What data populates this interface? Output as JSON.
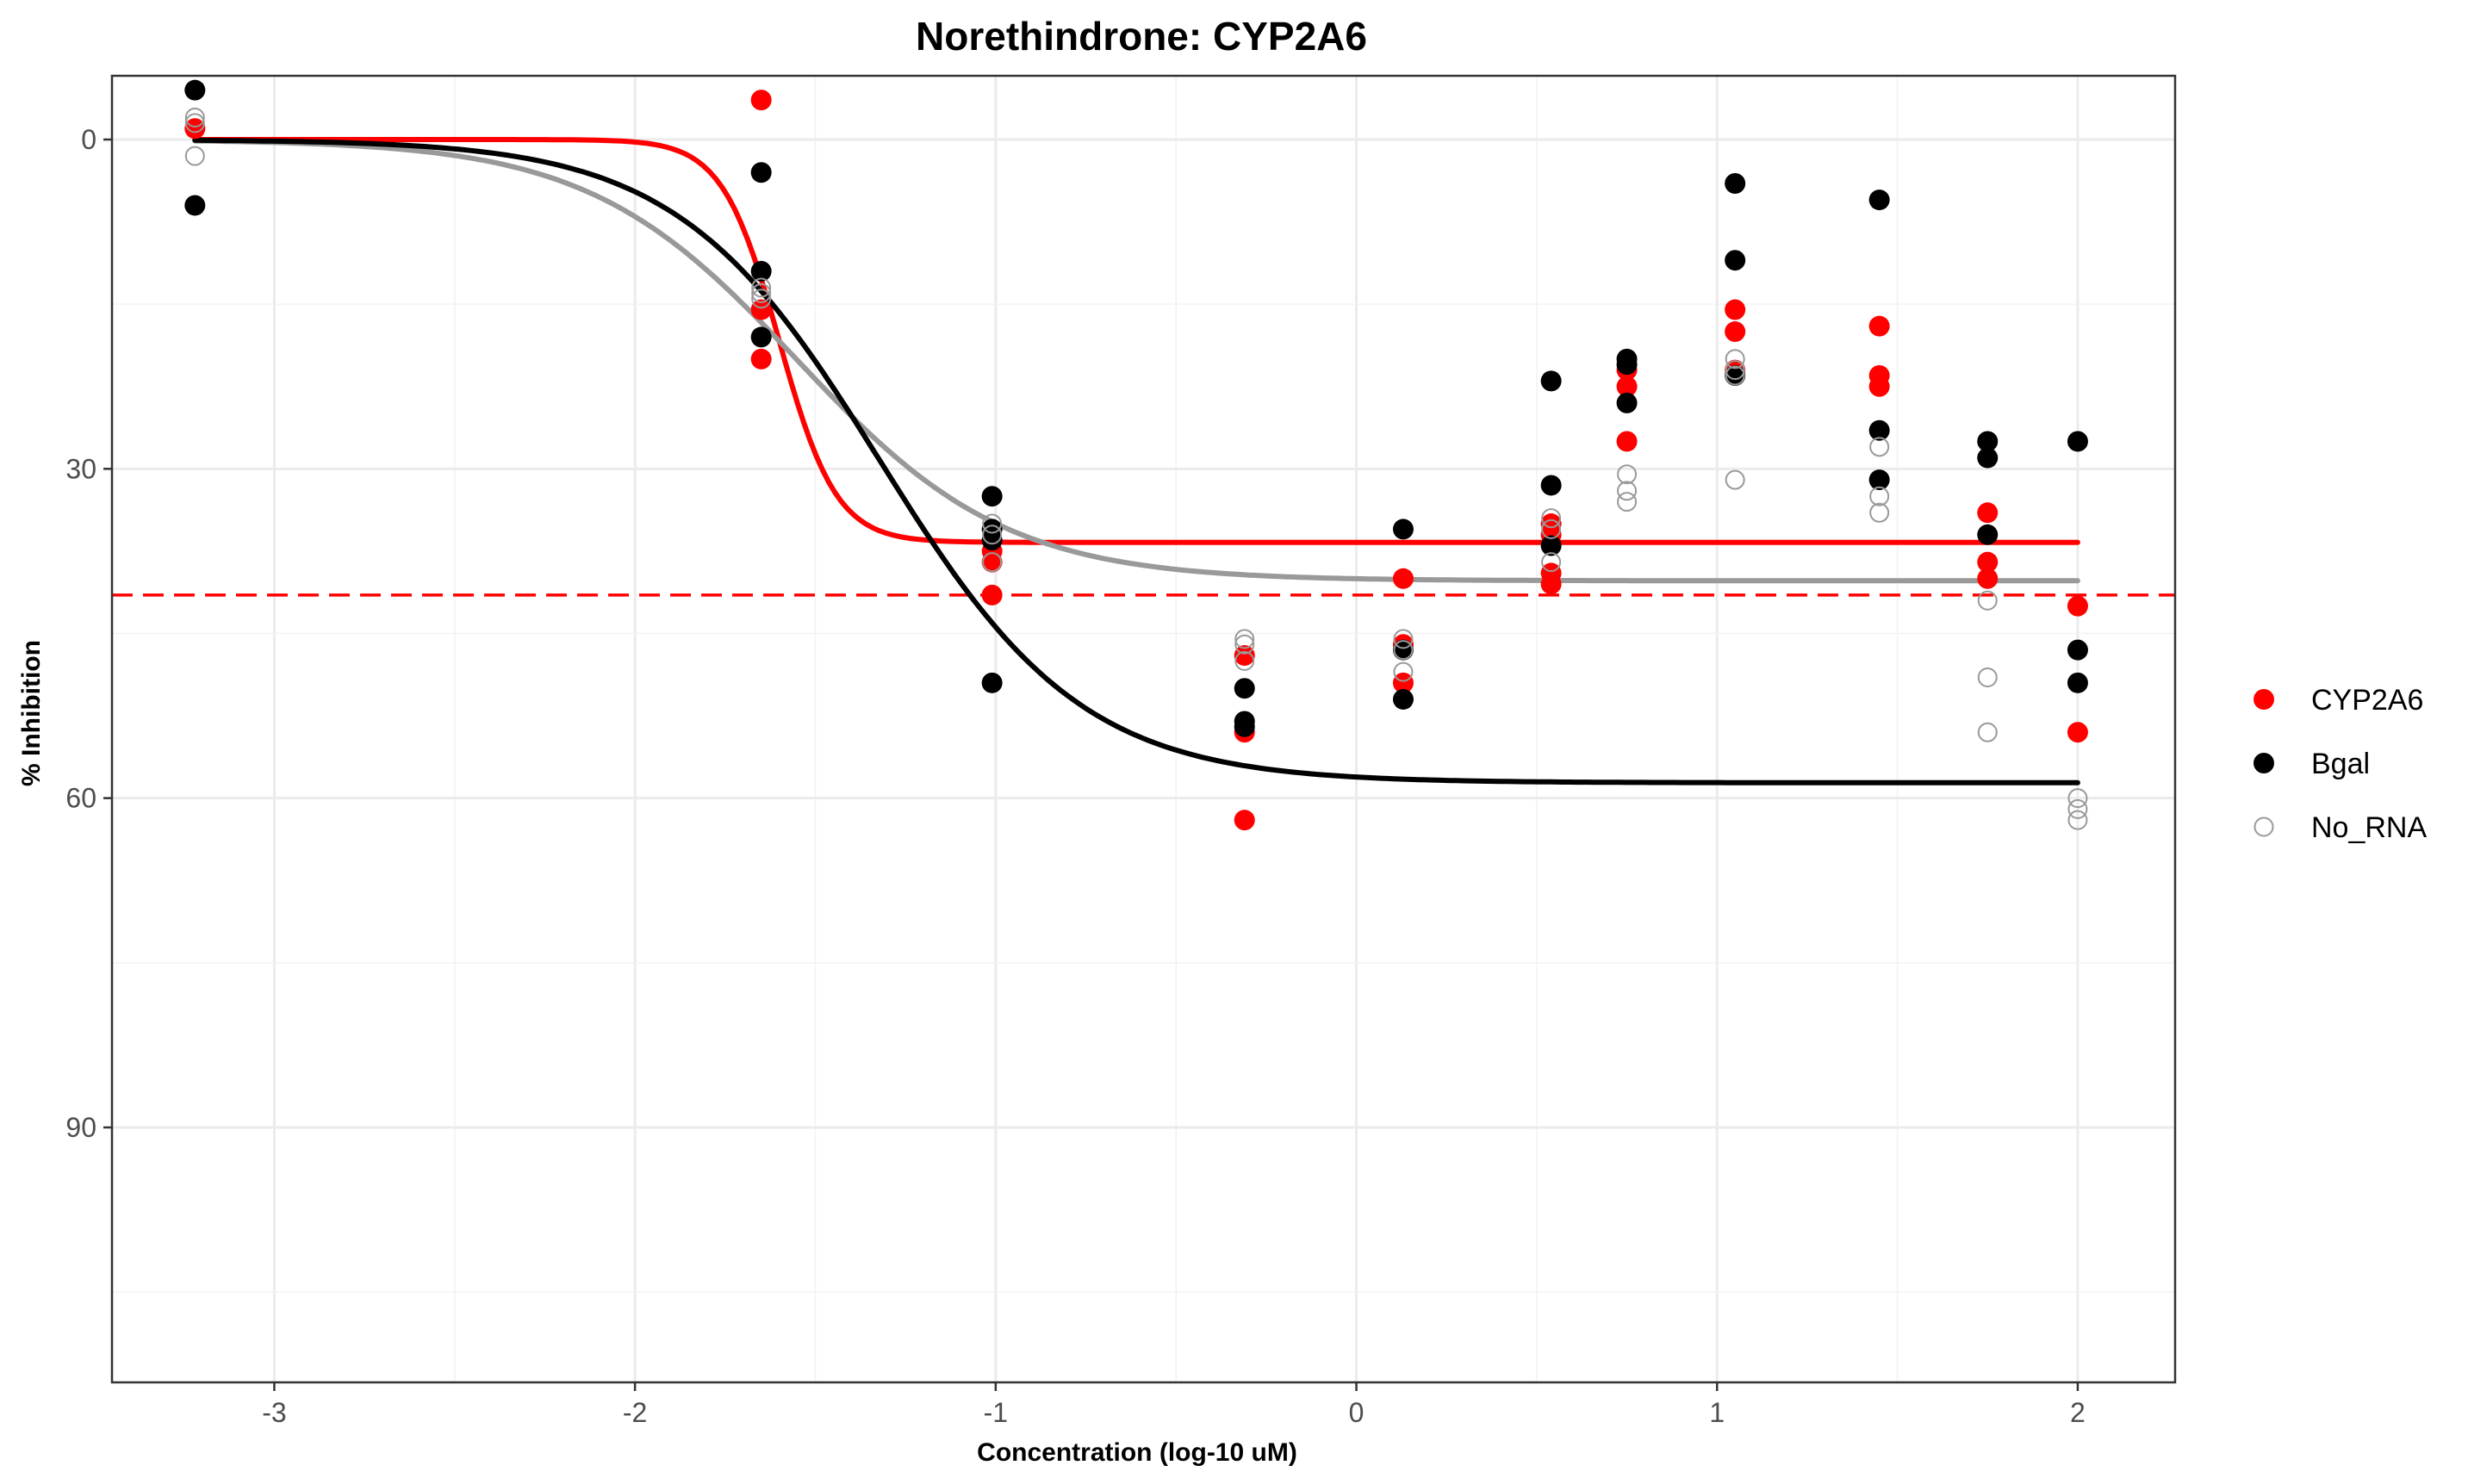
{
  "chart_data": {
    "type": "scatter",
    "title": "Norethindrone: CYP2A6",
    "xlabel": "Concentration (log-10 uM)",
    "ylabel": "% Inhibition",
    "xlim": [
      -3.45,
      2.27
    ],
    "ylim": [
      0,
      115
    ],
    "y_reversed": true,
    "x_ticks": [
      -3,
      -2,
      -1,
      0,
      1,
      2
    ],
    "x_tick_labels": [
      "-3",
      "-2",
      "-1",
      "0",
      "1",
      "2"
    ],
    "y_ticks": [
      0,
      30,
      60,
      90
    ],
    "y_tick_labels": [
      "0",
      "30",
      "60",
      "90"
    ],
    "grid": true,
    "legend_position": "right",
    "colors": {
      "CYP2A6": "#ff0000",
      "Bgal": "#000000",
      "No_RNA": "#999999"
    },
    "series": [
      {
        "name": "CYP2A6",
        "marker": "filled-circle",
        "points": [
          [
            -3.22,
            -1
          ],
          [
            -1.65,
            -3.6
          ],
          [
            -1.65,
            15.5
          ],
          [
            -1.65,
            20
          ],
          [
            -1.01,
            37.5
          ],
          [
            -1.01,
            38.5
          ],
          [
            -1.01,
            41.5
          ],
          [
            -0.31,
            47
          ],
          [
            -0.31,
            54
          ],
          [
            -0.31,
            62
          ],
          [
            0.13,
            40
          ],
          [
            0.13,
            46
          ],
          [
            0.13,
            49.5
          ],
          [
            0.54,
            35
          ],
          [
            0.54,
            36
          ],
          [
            0.54,
            39.5
          ],
          [
            0.54,
            40.5
          ],
          [
            0.75,
            21
          ],
          [
            0.75,
            22.5
          ],
          [
            0.75,
            27.5
          ],
          [
            1.05,
            15.5
          ],
          [
            1.05,
            17.5
          ],
          [
            1.05,
            21
          ],
          [
            1.45,
            17
          ],
          [
            1.45,
            21.5
          ],
          [
            1.45,
            22.5
          ],
          [
            1.75,
            34
          ],
          [
            1.75,
            38.5
          ],
          [
            1.75,
            40
          ],
          [
            2.0,
            42.5
          ],
          [
            2.0,
            54
          ]
        ]
      },
      {
        "name": "Bgal",
        "marker": "filled-circle",
        "points": [
          [
            -3.22,
            -4.5
          ],
          [
            -3.22,
            6
          ],
          [
            -1.65,
            3
          ],
          [
            -1.65,
            12
          ],
          [
            -1.65,
            18
          ],
          [
            -1.01,
            32.5
          ],
          [
            -1.01,
            35.5
          ],
          [
            -1.01,
            36.5
          ],
          [
            -1.01,
            49.5
          ],
          [
            -0.31,
            50
          ],
          [
            -0.31,
            53
          ],
          [
            -0.31,
            53.5
          ],
          [
            0.13,
            35.5
          ],
          [
            0.13,
            46.5
          ],
          [
            0.13,
            51
          ],
          [
            0.54,
            22
          ],
          [
            0.54,
            31.5
          ],
          [
            0.54,
            37
          ],
          [
            0.75,
            20
          ],
          [
            0.75,
            20.5
          ],
          [
            0.75,
            24
          ],
          [
            1.05,
            4
          ],
          [
            1.05,
            11
          ],
          [
            1.05,
            21.5
          ],
          [
            1.45,
            5.5
          ],
          [
            1.45,
            26.5
          ],
          [
            1.45,
            31
          ],
          [
            1.75,
            27.5
          ],
          [
            1.75,
            29
          ],
          [
            1.75,
            36
          ],
          [
            2.0,
            27.5
          ],
          [
            2.0,
            46.5
          ],
          [
            2.0,
            49.5
          ]
        ]
      },
      {
        "name": "No_RNA",
        "marker": "open-circle",
        "points": [
          [
            -3.22,
            -2
          ],
          [
            -3.22,
            -1.5
          ],
          [
            -3.22,
            1.5
          ],
          [
            -1.65,
            13.5
          ],
          [
            -1.65,
            14
          ],
          [
            -1.65,
            14.5
          ],
          [
            -1.01,
            35
          ],
          [
            -1.01,
            36
          ],
          [
            -1.01,
            38.5
          ],
          [
            -0.31,
            45.5
          ],
          [
            -0.31,
            46
          ],
          [
            -0.31,
            47.5
          ],
          [
            0.13,
            45.5
          ],
          [
            0.13,
            46.5
          ],
          [
            0.13,
            48.5
          ],
          [
            0.54,
            34.5
          ],
          [
            0.54,
            35.5
          ],
          [
            0.54,
            38.5
          ],
          [
            0.75,
            30.5
          ],
          [
            0.75,
            32
          ],
          [
            0.75,
            33
          ],
          [
            1.05,
            20
          ],
          [
            1.05,
            21
          ],
          [
            1.05,
            21.5
          ],
          [
            1.05,
            31
          ],
          [
            1.45,
            28
          ],
          [
            1.45,
            32.5
          ],
          [
            1.45,
            34
          ],
          [
            1.75,
            42
          ],
          [
            1.75,
            49
          ],
          [
            1.75,
            54
          ],
          [
            2.0,
            60
          ],
          [
            2.0,
            61
          ],
          [
            2.0,
            62
          ]
        ]
      }
    ],
    "fits": [
      {
        "series": "CYP2A6",
        "top": 0,
        "bottom": 36.7,
        "logIC50": -1.6,
        "hill": 5.5
      },
      {
        "series": "No_RNA",
        "top": 0,
        "bottom": 40.2,
        "logIC50": -1.55,
        "hill": 1.5
      },
      {
        "series": "Bgal",
        "top": 0,
        "bottom": 58.6,
        "logIC50": -1.32,
        "hill": 1.55
      }
    ],
    "reference_line": {
      "y": 41.5,
      "style": "dashed",
      "color": "#ff0000"
    }
  }
}
